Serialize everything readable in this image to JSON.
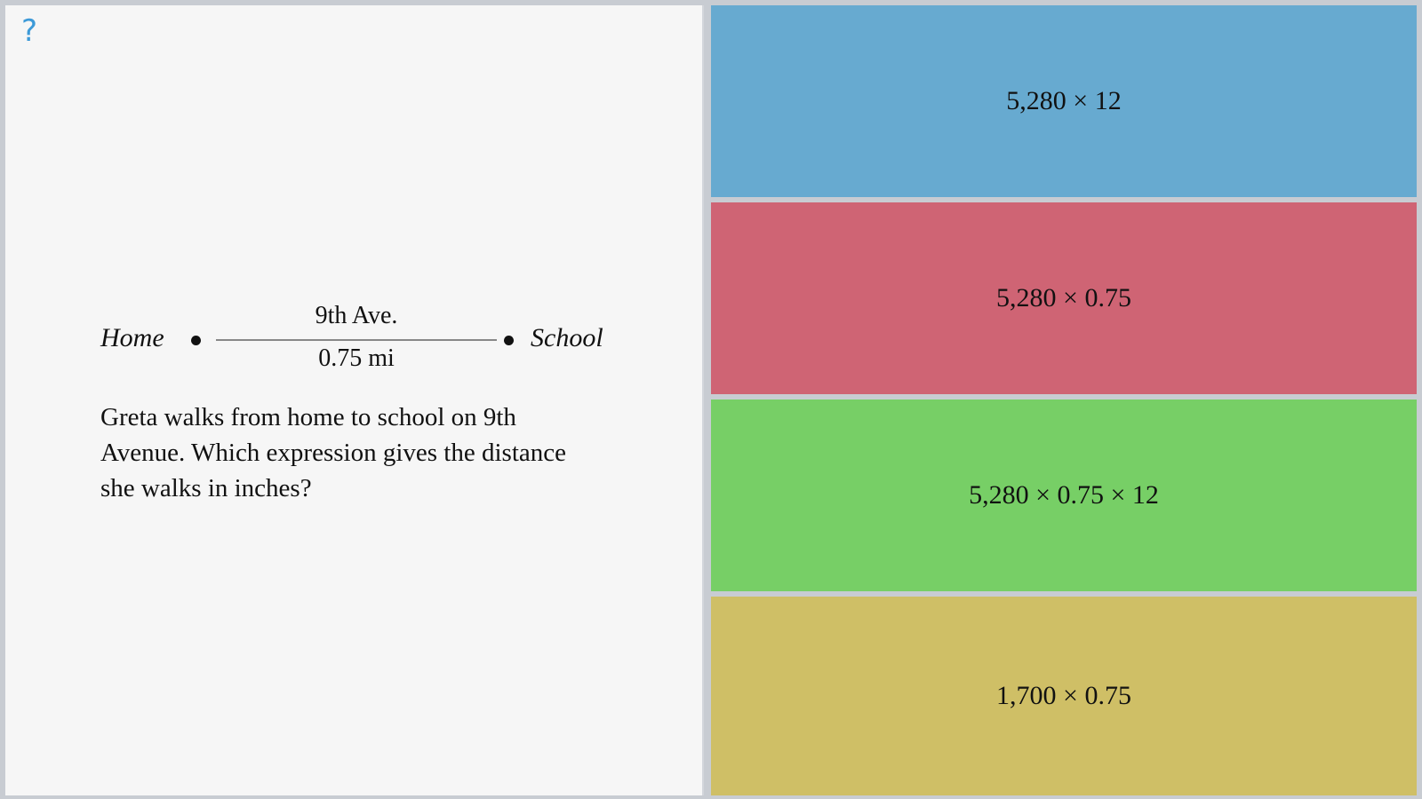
{
  "help": {
    "symbol": "?"
  },
  "diagram": {
    "home_label": "Home",
    "school_label": "School",
    "street_name": "9th Ave.",
    "distance": "0.75 mi"
  },
  "question": {
    "text": "Greta walks from home to school on 9th Avenue. Which expression gives the distance she walks in inches?"
  },
  "answers": [
    {
      "label": "5,280 × 12",
      "color": "#67aad0"
    },
    {
      "label": "5,280 × 0.75",
      "color": "#cf6474"
    },
    {
      "label": "5,280 × 0.75 × 12",
      "color": "#77cf66"
    },
    {
      "label": "1,700 × 0.75",
      "color": "#cfbf66"
    }
  ]
}
